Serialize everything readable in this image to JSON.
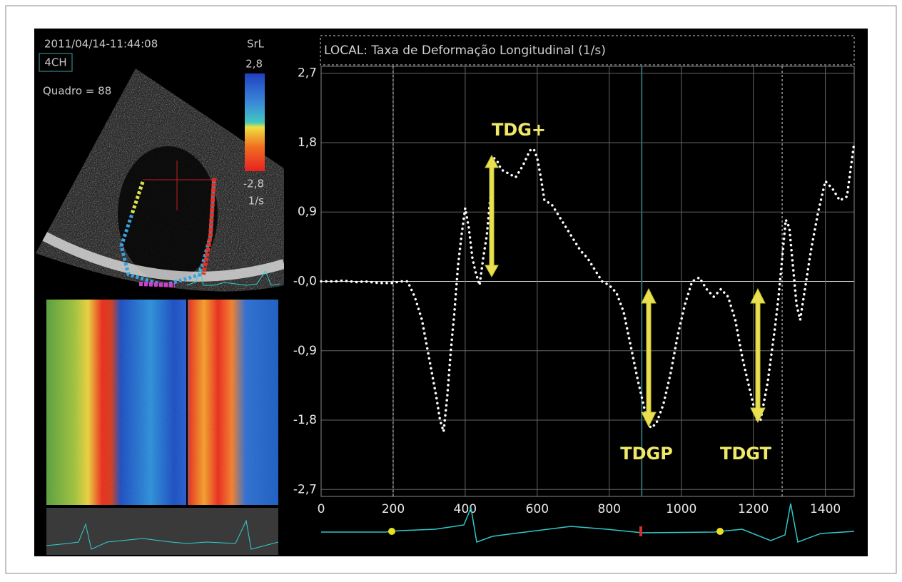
{
  "panel": {
    "timestamp": "2011/04/14-11:44:08",
    "view": "4CH",
    "frame": "Quadro = 88",
    "scale_title": "SrL",
    "scale_max": "2,8",
    "scale_min": "-2,8",
    "scale_unit": "1/s"
  },
  "chart_data": {
    "type": "line",
    "title": "LOCAL:  Taxa de Deformação Longitudinal (1/s)",
    "x": [
      0,
      20,
      40,
      60,
      80,
      100,
      120,
      140,
      160,
      180,
      200,
      220,
      240,
      260,
      280,
      300,
      320,
      330,
      340,
      350,
      360,
      370,
      380,
      390,
      400,
      410,
      420,
      430,
      440,
      450,
      460,
      470,
      480,
      490,
      500,
      520,
      540,
      560,
      580,
      590,
      600,
      610,
      620,
      640,
      660,
      680,
      700,
      720,
      740,
      760,
      780,
      800,
      820,
      840,
      860,
      880,
      900,
      915,
      930,
      950,
      970,
      990,
      1010,
      1030,
      1050,
      1070,
      1090,
      1110,
      1130,
      1150,
      1170,
      1190,
      1210,
      1220,
      1240,
      1260,
      1270,
      1280,
      1290,
      1300,
      1310,
      1320,
      1330,
      1340,
      1360,
      1380,
      1400,
      1420,
      1440,
      1460,
      1480
    ],
    "series": [
      {
        "color": "#ffffff",
        "values": [
          0,
          0,
          0,
          0.01,
          0,
          -0.01,
          0,
          -0.01,
          -0.02,
          -0.02,
          -0.02,
          0,
          0,
          -0.2,
          -0.5,
          -1.0,
          -1.5,
          -1.8,
          -1.95,
          -1.5,
          -0.9,
          -0.4,
          0.2,
          0.6,
          0.95,
          0.7,
          0.3,
          0.1,
          -0.05,
          0.3,
          0.6,
          1.1,
          1.6,
          1.55,
          1.45,
          1.4,
          1.35,
          1.5,
          1.7,
          1.72,
          1.6,
          1.35,
          1.05,
          1.0,
          0.85,
          0.7,
          0.55,
          0.4,
          0.3,
          0.15,
          0.0,
          -0.05,
          -0.15,
          -0.4,
          -0.85,
          -1.3,
          -1.7,
          -1.9,
          -1.85,
          -1.6,
          -1.2,
          -0.7,
          -0.3,
          0.0,
          0.05,
          -0.1,
          -0.2,
          -0.1,
          -0.2,
          -0.5,
          -1.0,
          -1.4,
          -1.8,
          -1.8,
          -1.3,
          -0.6,
          -0.2,
          0.3,
          0.8,
          0.7,
          0.2,
          -0.3,
          -0.5,
          -0.2,
          0.4,
          0.9,
          1.3,
          1.2,
          1.05,
          1.1,
          1.8
        ]
      }
    ],
    "xlim": [
      0,
      1480
    ],
    "ylim": [
      -2.79,
      2.79
    ],
    "xticks": [
      0,
      200,
      400,
      600,
      800,
      1000,
      1200,
      1400
    ],
    "yticks": [
      {
        "value": 2.7,
        "label": "2,7"
      },
      {
        "value": 1.8,
        "label": "1,8"
      },
      {
        "value": 0.9,
        "label": "0,9"
      },
      {
        "value": 0,
        "label": "-0,0"
      },
      {
        "value": -0.9,
        "label": "-0,9"
      },
      {
        "value": -1.8,
        "label": "-1,8"
      },
      {
        "value": -2.7,
        "label": "-2,7"
      }
    ],
    "grid": true,
    "markers": [
      {
        "x": 200,
        "style": "dashed"
      },
      {
        "x": 890,
        "style": "solid"
      },
      {
        "x": 1280,
        "style": "dashed"
      }
    ],
    "annotations": [
      "TDG+",
      "TDGP",
      "TDGT"
    ]
  }
}
